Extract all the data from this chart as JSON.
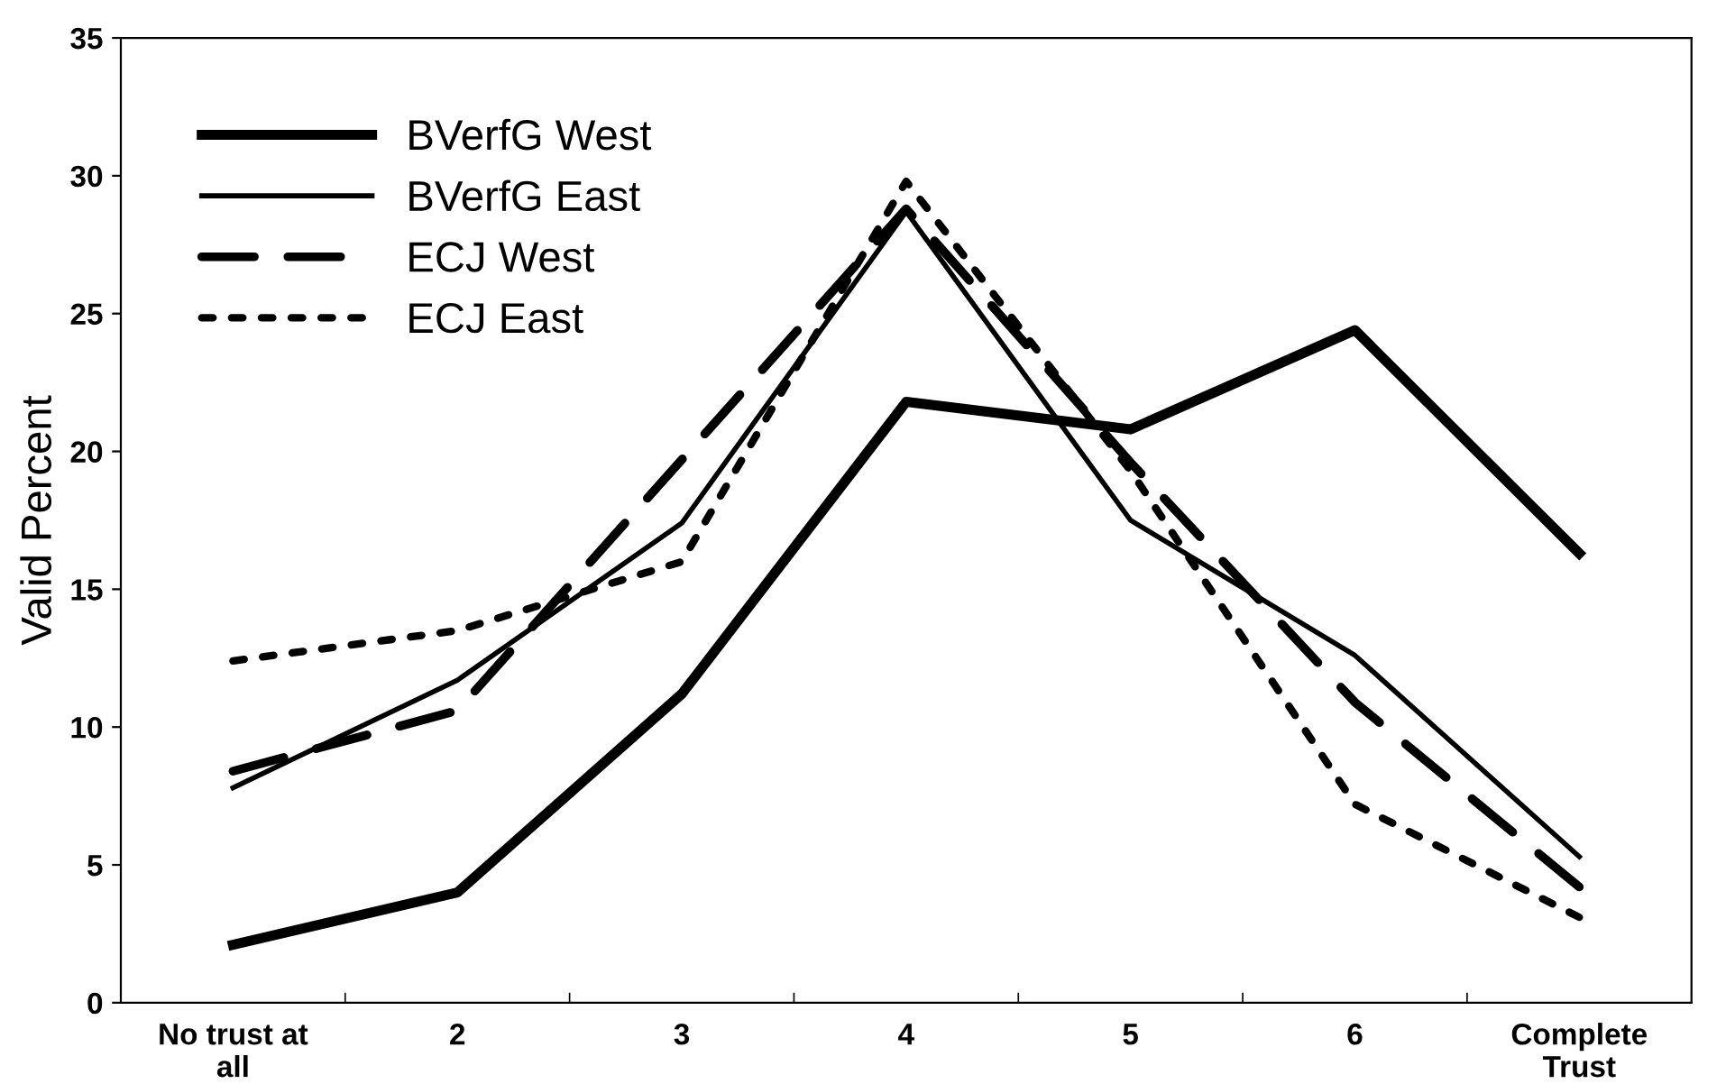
{
  "chart_data": {
    "type": "line",
    "ylabel": "Valid Percent",
    "categories": [
      "No trust at\nall",
      "2",
      "3",
      "4",
      "5",
      "6",
      "Complete\nTrust"
    ],
    "series": [
      {
        "name": "BVerfG West",
        "color": "#000000",
        "line_style": "solid",
        "values": [
          2.1,
          4.0,
          11.2,
          21.8,
          20.8,
          24.4,
          16.3
        ]
      },
      {
        "name": "BVerfG East",
        "color": "#000000",
        "line_style": "solid",
        "values": [
          7.8,
          11.7,
          17.4,
          28.7,
          17.5,
          12.6,
          5.3
        ]
      },
      {
        "name": "ECJ West",
        "color": "#000000",
        "line_style": "dashed",
        "values": [
          8.4,
          10.6,
          19.7,
          28.8,
          19.6,
          10.9,
          4.2
        ]
      },
      {
        "name": "ECJ East",
        "color": "#000000",
        "line_style": "dotted",
        "values": [
          12.4,
          13.5,
          16.0,
          29.8,
          19.3,
          7.2,
          3.1
        ]
      }
    ],
    "ylim": [
      0,
      35
    ],
    "yticks": [
      0,
      5,
      10,
      15,
      20,
      25,
      30,
      35
    ],
    "grid": false,
    "legend": "top left",
    "marker": "none"
  }
}
